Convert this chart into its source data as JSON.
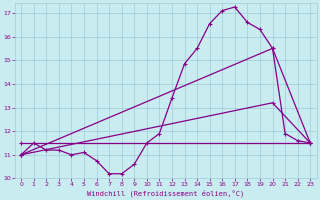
{
  "xlabel": "Windchill (Refroidissement éolien,°C)",
  "bg_color": "#c8ecf0",
  "grid_color": "#a0ccd8",
  "line_color": "#880088",
  "xlim": [
    -0.5,
    23.5
  ],
  "ylim": [
    10,
    17.4
  ],
  "xticks": [
    0,
    1,
    2,
    3,
    4,
    5,
    6,
    7,
    8,
    9,
    10,
    11,
    12,
    13,
    14,
    15,
    16,
    17,
    18,
    19,
    20,
    21,
    22,
    23
  ],
  "yticks": [
    10,
    11,
    12,
    13,
    14,
    15,
    16,
    17
  ],
  "line1_x": [
    0,
    1,
    2,
    3,
    4,
    5,
    6,
    7,
    8,
    9,
    10,
    11,
    12,
    13,
    14,
    15,
    16,
    17,
    18,
    19,
    20,
    21,
    22,
    23
  ],
  "line1_y": [
    11.0,
    11.5,
    11.2,
    11.2,
    11.0,
    11.1,
    10.75,
    10.2,
    10.2,
    10.6,
    11.5,
    11.9,
    13.4,
    14.85,
    15.5,
    16.55,
    17.1,
    17.25,
    16.6,
    16.3,
    15.5,
    11.9,
    11.6,
    11.5
  ],
  "line2_x": [
    0,
    23
  ],
  "line2_y": [
    11.5,
    11.5
  ],
  "line3_x": [
    0,
    20,
    23
  ],
  "line3_y": [
    11.0,
    13.2,
    11.5
  ],
  "line4_x": [
    0,
    20,
    23
  ],
  "line4_y": [
    11.0,
    15.5,
    11.5
  ],
  "marker": "+"
}
